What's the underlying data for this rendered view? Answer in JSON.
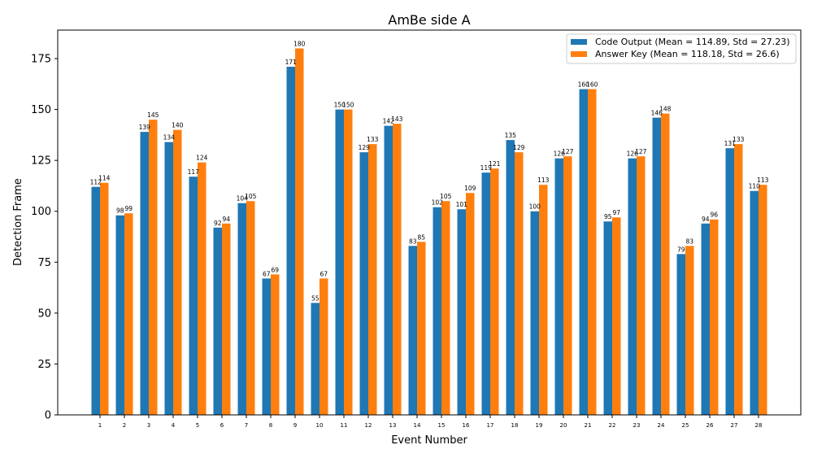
{
  "chart_data": {
    "type": "bar",
    "title": "AmBe side A",
    "xlabel": "Event Number",
    "ylabel": "Detection Frame",
    "ylim": [
      0,
      189
    ],
    "yticks": [
      0,
      25,
      50,
      75,
      100,
      125,
      150,
      175
    ],
    "legend_position": "top-right",
    "categories": [
      "1",
      "2",
      "3",
      "4",
      "5",
      "6",
      "7",
      "8",
      "9",
      "10",
      "11",
      "12",
      "13",
      "14",
      "15",
      "16",
      "17",
      "18",
      "19",
      "20",
      "21",
      "22",
      "23",
      "24",
      "25",
      "26",
      "27",
      "28"
    ],
    "series": [
      {
        "name": "Code Output (Mean = 114.89, Std = 27.23)",
        "color": "#1f77b4",
        "values": [
          112,
          98,
          139,
          134,
          117,
          92,
          104,
          67,
          171,
          55,
          150,
          129,
          142,
          83,
          102,
          101,
          119,
          135,
          100,
          126,
          160,
          95,
          126,
          146,
          79,
          94,
          131,
          110
        ]
      },
      {
        "name": "Answer Key (Mean = 118.18, Std = 26.6)",
        "color": "#ff7f0e",
        "values": [
          114,
          99,
          145,
          140,
          124,
          94,
          105,
          69,
          180,
          67,
          150,
          133,
          143,
          85,
          105,
          109,
          121,
          129,
          113,
          127,
          160,
          97,
          127,
          148,
          83,
          96,
          133,
          113
        ]
      }
    ]
  }
}
